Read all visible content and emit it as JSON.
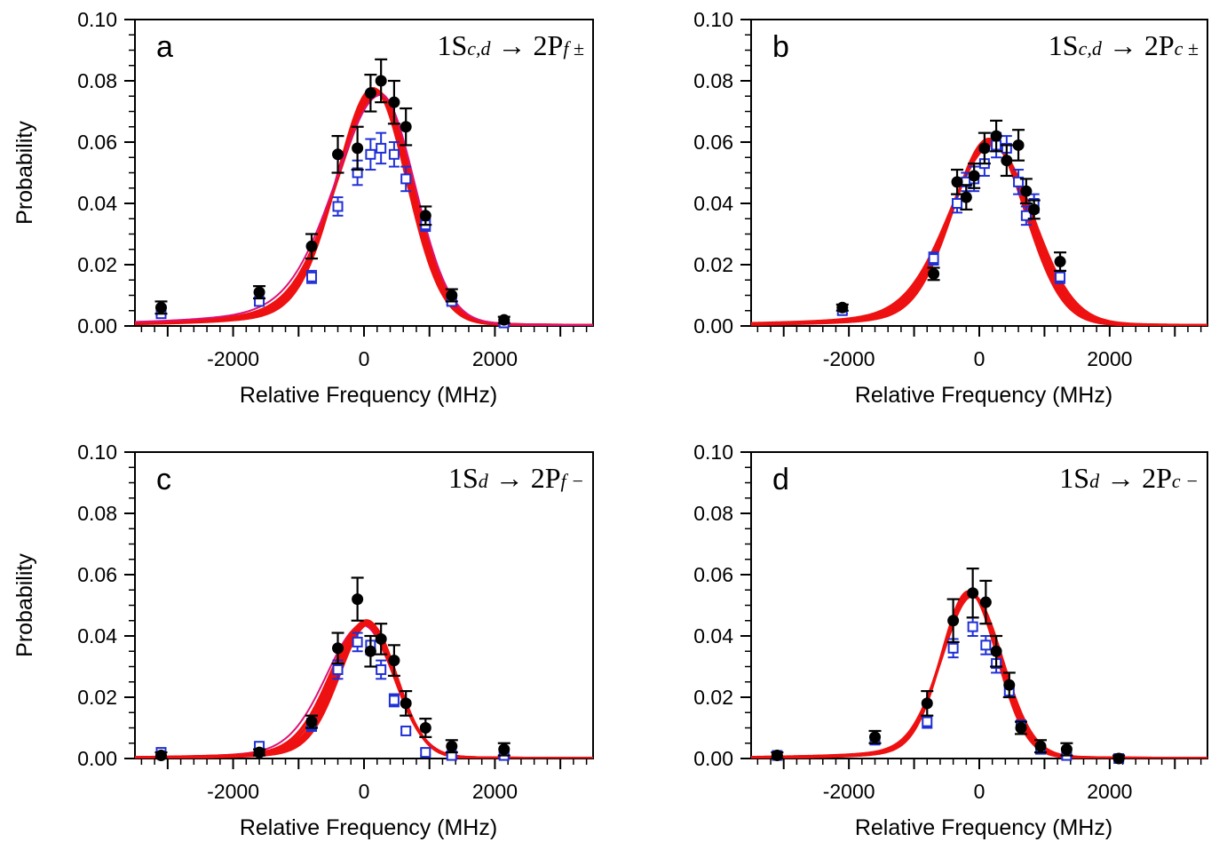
{
  "figure": {
    "panels": [
      {
        "id": "a",
        "letter": "a",
        "transition": {
          "from": "1S",
          "from_sub": "c,d",
          "arrow": "→",
          "to": "2P",
          "to_sub": "f ±"
        },
        "show_ylabel": true
      },
      {
        "id": "b",
        "letter": "b",
        "transition": {
          "from": "1S",
          "from_sub": "c,d",
          "arrow": "→",
          "to": "2P",
          "to_sub": "c ±"
        },
        "show_ylabel": false
      },
      {
        "id": "c",
        "letter": "c",
        "transition": {
          "from": "1S",
          "from_sub": "d",
          "arrow": "→",
          "to": "2P",
          "to_sub": "f −"
        },
        "show_ylabel": true
      },
      {
        "id": "d",
        "letter": "d",
        "transition": {
          "from": "1S",
          "from_sub": "d",
          "arrow": "→",
          "to": "2P",
          "to_sub": "c −"
        },
        "show_ylabel": false
      }
    ]
  },
  "colors": {
    "black_data": "#000000",
    "blue_data": "#1f2fd6",
    "fit_red": "#ee1111",
    "fit_magenta": "#dd1177"
  },
  "chart_data": [
    {
      "type": "scatter",
      "panel": "a",
      "xlabel": "Relative Frequency (MHz)",
      "ylabel": "Probability",
      "xlim": [
        -3500,
        3500
      ],
      "ylim": [
        0,
        0.1
      ],
      "xticks": [
        -2000,
        0,
        2000
      ],
      "xtick_labels": [
        "-2000",
        "0",
        "2000"
      ],
      "yticks": [
        0,
        0.02,
        0.04,
        0.06,
        0.08,
        0.1
      ],
      "ytick_labels": [
        "0.00",
        "0.02",
        "0.04",
        "0.06",
        "0.08",
        "0.10"
      ],
      "black": {
        "x": [
          -3100,
          -1600,
          -800,
          -400,
          -100,
          100,
          260,
          460,
          640,
          940,
          1340,
          2140
        ],
        "y": [
          0.006,
          0.011,
          0.026,
          0.056,
          0.058,
          0.076,
          0.08,
          0.073,
          0.065,
          0.036,
          0.01,
          0.002
        ],
        "err": [
          0.002,
          0.002,
          0.004,
          0.006,
          0.007,
          0.006,
          0.007,
          0.007,
          0.006,
          0.003,
          0.002,
          0.001
        ]
      },
      "blue": {
        "x": [
          -3100,
          -1600,
          -800,
          -400,
          -100,
          100,
          260,
          460,
          640,
          940,
          1340,
          2140
        ],
        "y": [
          0.004,
          0.008,
          0.016,
          0.039,
          0.05,
          0.056,
          0.058,
          0.056,
          0.048,
          0.033,
          0.008,
          0.001
        ],
        "err": [
          0.001,
          0.001,
          0.002,
          0.003,
          0.004,
          0.005,
          0.005,
          0.004,
          0.004,
          0.002,
          0.001,
          0.001
        ]
      },
      "fits": {
        "center": [
          140,
          160,
          180,
          200,
          220,
          240,
          260
        ],
        "amplitude": [
          0.0775,
          0.0772,
          0.0768,
          0.0765,
          0.076,
          0.0757,
          0.0754
        ],
        "width_left": [
          560,
          580,
          600,
          620,
          640,
          660,
          700
        ],
        "width_right": [
          520,
          520,
          520,
          520,
          520,
          520,
          520
        ],
        "tail": [
          0.6,
          0.62,
          0.64,
          0.66,
          0.7,
          0.72,
          0.8
        ],
        "magenta_index": 6
      }
    },
    {
      "type": "scatter",
      "panel": "b",
      "xlabel": "Relative Frequency (MHz)",
      "ylabel": "",
      "xlim": [
        -3500,
        3500
      ],
      "ylim": [
        0,
        0.1
      ],
      "xticks": [
        -2000,
        0,
        2000
      ],
      "xtick_labels": [
        "-2000",
        "0",
        "2000"
      ],
      "yticks": [
        0,
        0.02,
        0.04,
        0.06,
        0.08,
        0.1
      ],
      "ytick_labels": [
        "0.00",
        "0.02",
        "0.04",
        "0.06",
        "0.08",
        "0.10"
      ],
      "black": {
        "x": [
          -2100,
          -700,
          -340,
          -200,
          -80,
          80,
          260,
          420,
          600,
          720,
          840,
          1240
        ],
        "y": [
          0.006,
          0.017,
          0.047,
          0.042,
          0.049,
          0.058,
          0.062,
          0.054,
          0.059,
          0.044,
          0.038,
          0.021
        ],
        "err": [
          0.001,
          0.002,
          0.004,
          0.004,
          0.004,
          0.005,
          0.005,
          0.005,
          0.005,
          0.004,
          0.003,
          0.003
        ]
      },
      "blue": {
        "x": [
          -2100,
          -700,
          -340,
          -200,
          -80,
          80,
          260,
          420,
          600,
          720,
          840,
          1240
        ],
        "y": [
          0.005,
          0.022,
          0.04,
          0.047,
          0.048,
          0.053,
          0.059,
          0.058,
          0.047,
          0.036,
          0.04,
          0.016
        ],
        "err": [
          0.001,
          0.002,
          0.003,
          0.003,
          0.004,
          0.004,
          0.004,
          0.004,
          0.004,
          0.003,
          0.003,
          0.002
        ]
      },
      "fits": {
        "center": [
          150,
          160,
          170,
          180,
          190,
          200
        ],
        "amplitude": [
          0.061,
          0.0605,
          0.06,
          0.0597,
          0.0593,
          0.059
        ],
        "width_left": [
          560,
          580,
          600,
          620,
          640,
          660
        ],
        "width_right": [
          560,
          570,
          580,
          590,
          600,
          620
        ],
        "tail": [
          0.55,
          0.58,
          0.6,
          0.62,
          0.65,
          0.7
        ],
        "magenta_index": -1
      }
    },
    {
      "type": "scatter",
      "panel": "c",
      "xlabel": "Relative Frequency (MHz)",
      "ylabel": "Probability",
      "xlim": [
        -3500,
        3500
      ],
      "ylim": [
        0,
        0.1
      ],
      "xticks": [
        -2000,
        0,
        2000
      ],
      "xtick_labels": [
        "-2000",
        "0",
        "2000"
      ],
      "yticks": [
        0,
        0.02,
        0.04,
        0.06,
        0.08,
        0.1
      ],
      "ytick_labels": [
        "0.00",
        "0.02",
        "0.04",
        "0.06",
        "0.08",
        "0.10"
      ],
      "black": {
        "x": [
          -3100,
          -1600,
          -800,
          -400,
          -100,
          100,
          260,
          460,
          640,
          940,
          1340,
          2140
        ],
        "y": [
          0.001,
          0.002,
          0.012,
          0.036,
          0.052,
          0.035,
          0.039,
          0.032,
          0.018,
          0.01,
          0.004,
          0.003
        ],
        "err": [
          0.001,
          0.001,
          0.002,
          0.005,
          0.007,
          0.005,
          0.005,
          0.005,
          0.004,
          0.003,
          0.002,
          0.002
        ]
      },
      "blue": {
        "x": [
          -3100,
          -1600,
          -800,
          -400,
          -100,
          100,
          260,
          460,
          640,
          940,
          1340,
          2140
        ],
        "y": [
          0.002,
          0.004,
          0.011,
          0.029,
          0.038,
          0.037,
          0.029,
          0.019,
          0.009,
          0.002,
          0.001,
          0.001
        ],
        "err": [
          0.001,
          0.001,
          0.002,
          0.003,
          0.003,
          0.003,
          0.003,
          0.002,
          0.001,
          0.001,
          0.001,
          0.001
        ]
      },
      "fits": {
        "center": [
          -20,
          0,
          20,
          40,
          60,
          80
        ],
        "amplitude": [
          0.0435,
          0.044,
          0.0445,
          0.045,
          0.0445,
          0.044
        ],
        "width_left": [
          560,
          520,
          500,
          480,
          470,
          460
        ],
        "width_right": [
          480,
          460,
          450,
          440,
          430,
          420
        ],
        "tail": [
          0.6,
          0.58,
          0.56,
          0.54,
          0.52,
          0.5
        ],
        "magenta_index": 0
      }
    },
    {
      "type": "scatter",
      "panel": "d",
      "xlabel": "Relative Frequency (MHz)",
      "ylabel": "",
      "xlim": [
        -3500,
        3500
      ],
      "ylim": [
        0,
        0.1
      ],
      "xticks": [
        -2000,
        0,
        2000
      ],
      "xtick_labels": [
        "-2000",
        "0",
        "2000"
      ],
      "yticks": [
        0,
        0.02,
        0.04,
        0.06,
        0.08,
        0.1
      ],
      "ytick_labels": [
        "0.00",
        "0.02",
        "0.04",
        "0.06",
        "0.08",
        "0.10"
      ],
      "black": {
        "x": [
          -3100,
          -1600,
          -800,
          -400,
          -100,
          100,
          260,
          460,
          640,
          940,
          1340,
          2140
        ],
        "y": [
          0.001,
          0.007,
          0.018,
          0.045,
          0.054,
          0.051,
          0.035,
          0.024,
          0.01,
          0.004,
          0.003,
          0.0
        ],
        "err": [
          0.001,
          0.002,
          0.004,
          0.007,
          0.008,
          0.007,
          0.005,
          0.004,
          0.002,
          0.002,
          0.002,
          0.001
        ]
      },
      "blue": {
        "x": [
          -3100,
          -1600,
          -800,
          -400,
          -100,
          100,
          260,
          460,
          640,
          940,
          1340,
          2140
        ],
        "y": [
          0.001,
          0.006,
          0.012,
          0.036,
          0.043,
          0.037,
          0.031,
          0.022,
          0.011,
          0.003,
          0.001,
          0.0
        ],
        "err": [
          0.001,
          0.001,
          0.002,
          0.003,
          0.003,
          0.003,
          0.003,
          0.002,
          0.001,
          0.001,
          0.001,
          0.001
        ]
      },
      "fits": {
        "center": [
          -160,
          -150,
          -140,
          -130,
          -120,
          -110
        ],
        "amplitude": [
          0.0545,
          0.0542,
          0.054,
          0.0537,
          0.0535,
          0.053
        ],
        "width_left": [
          420,
          430,
          440,
          450,
          460,
          470
        ],
        "width_right": [
          440,
          445,
          450,
          455,
          460,
          465
        ],
        "tail": [
          0.5,
          0.52,
          0.54,
          0.56,
          0.58,
          0.6
        ],
        "magenta_index": -1
      }
    }
  ]
}
